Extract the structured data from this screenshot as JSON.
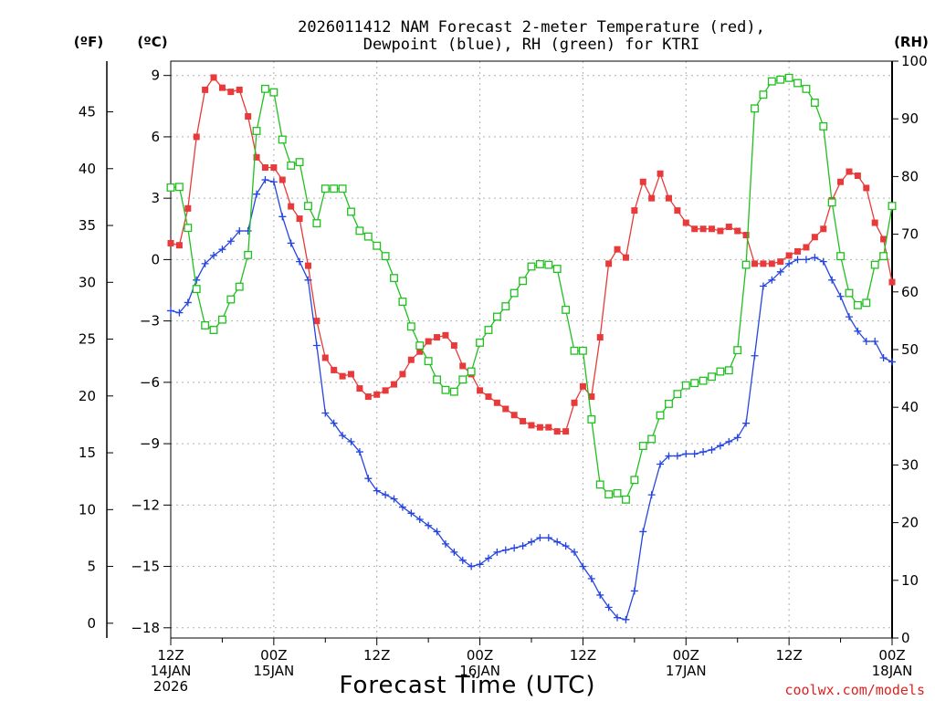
{
  "chart_data": {
    "type": "line",
    "title_line1": "2026011412 NAM Forecast 2-meter Temperature (red),",
    "title_line2": "Dewpoint (blue), RH (green) for KTRI",
    "unit_f": "(ºF)",
    "unit_c": "(ºC)",
    "unit_rh": "(RH)",
    "xlabel": "Forecast Time (UTC)",
    "credit": "coolwx.com/models",
    "x_ticks": [
      {
        "hour": 0,
        "lines": [
          "12Z",
          "14JAN",
          "2026"
        ]
      },
      {
        "hour": 12,
        "lines": [
          "00Z",
          "15JAN"
        ]
      },
      {
        "hour": 24,
        "lines": [
          "12Z"
        ]
      },
      {
        "hour": 36,
        "lines": [
          "00Z",
          "16JAN"
        ]
      },
      {
        "hour": 48,
        "lines": [
          "12Z"
        ]
      },
      {
        "hour": 60,
        "lines": [
          "00Z",
          "17JAN"
        ]
      },
      {
        "hour": 72,
        "lines": [
          "12Z"
        ]
      },
      {
        "hour": 84,
        "lines": [
          "00Z",
          "18JAN"
        ]
      }
    ],
    "x_range_hours": [
      0,
      84
    ],
    "y_left_c_range": [
      -18.5,
      9.7
    ],
    "y_left_c_ticks": [
      9,
      6,
      3,
      0,
      -3,
      -6,
      -9,
      -12,
      -15,
      -18
    ],
    "y_left_f_ticks": [
      45,
      40,
      35,
      30,
      25,
      20,
      15,
      10,
      5,
      0
    ],
    "y_right_rh_range": [
      0,
      100
    ],
    "y_right_rh_ticks": [
      100,
      90,
      80,
      70,
      60,
      50,
      40,
      30,
      20,
      10,
      0
    ],
    "series": [
      {
        "name": "Temperature (C)",
        "axis": "c",
        "color": "#e83a3a",
        "marker": "filled-square",
        "values": [
          [
            0,
            0.8
          ],
          [
            1,
            0.7
          ],
          [
            2,
            2.5
          ],
          [
            3,
            6.0
          ],
          [
            4,
            8.3
          ],
          [
            5,
            8.9
          ],
          [
            6,
            8.4
          ],
          [
            7,
            8.2
          ],
          [
            8,
            8.3
          ],
          [
            9,
            7.0
          ],
          [
            10,
            5.0
          ],
          [
            11,
            4.5
          ],
          [
            12,
            4.5
          ],
          [
            13,
            3.9
          ],
          [
            14,
            2.6
          ],
          [
            15,
            2.0
          ],
          [
            16,
            -0.3
          ],
          [
            17,
            -3.0
          ],
          [
            18,
            -4.8
          ],
          [
            19,
            -5.4
          ],
          [
            20,
            -5.7
          ],
          [
            21,
            -5.6
          ],
          [
            22,
            -6.3
          ],
          [
            23,
            -6.7
          ],
          [
            24,
            -6.6
          ],
          [
            25,
            -6.4
          ],
          [
            26,
            -6.1
          ],
          [
            27,
            -5.6
          ],
          [
            28,
            -4.9
          ],
          [
            29,
            -4.5
          ],
          [
            30,
            -4.0
          ],
          [
            31,
            -3.8
          ],
          [
            32,
            -3.7
          ],
          [
            33,
            -4.2
          ],
          [
            34,
            -5.2
          ],
          [
            35,
            -5.6
          ],
          [
            36,
            -6.4
          ],
          [
            37,
            -6.7
          ],
          [
            38,
            -7.0
          ],
          [
            39,
            -7.3
          ],
          [
            40,
            -7.6
          ],
          [
            41,
            -7.9
          ],
          [
            42,
            -8.1
          ],
          [
            43,
            -8.2
          ],
          [
            44,
            -8.2
          ],
          [
            45,
            -8.4
          ],
          [
            46,
            -8.4
          ],
          [
            47,
            -7.0
          ],
          [
            48,
            -6.2
          ],
          [
            49,
            -6.7
          ],
          [
            50,
            -3.8
          ],
          [
            51,
            -0.2
          ],
          [
            52,
            0.5
          ],
          [
            53,
            0.1
          ],
          [
            54,
            2.4
          ],
          [
            55,
            3.8
          ],
          [
            56,
            3.0
          ],
          [
            57,
            4.2
          ],
          [
            58,
            3.0
          ],
          [
            59,
            2.4
          ],
          [
            60,
            1.8
          ],
          [
            61,
            1.5
          ],
          [
            62,
            1.5
          ],
          [
            63,
            1.5
          ],
          [
            64,
            1.4
          ],
          [
            65,
            1.6
          ],
          [
            66,
            1.4
          ],
          [
            67,
            1.2
          ],
          [
            68,
            -0.2
          ],
          [
            69,
            -0.2
          ],
          [
            70,
            -0.2
          ],
          [
            71,
            -0.1
          ],
          [
            72,
            0.2
          ],
          [
            73,
            0.4
          ],
          [
            74,
            0.6
          ],
          [
            75,
            1.1
          ],
          [
            76,
            1.5
          ],
          [
            77,
            2.9
          ],
          [
            78,
            3.8
          ],
          [
            79,
            4.3
          ],
          [
            80,
            4.1
          ],
          [
            81,
            3.5
          ],
          [
            82,
            1.8
          ],
          [
            83,
            1.0
          ],
          [
            84,
            -1.1
          ]
        ]
      },
      {
        "name": "Dewpoint (C)",
        "axis": "c",
        "color": "#2545e0",
        "marker": "plus",
        "values": [
          [
            0,
            -2.5
          ],
          [
            1,
            -2.6
          ],
          [
            2,
            -2.1
          ],
          [
            3,
            -1.0
          ],
          [
            4,
            -0.2
          ],
          [
            5,
            0.2
          ],
          [
            6,
            0.5
          ],
          [
            7,
            0.9
          ],
          [
            8,
            1.4
          ],
          [
            9,
            1.4
          ],
          [
            10,
            3.2
          ],
          [
            11,
            3.9
          ],
          [
            12,
            3.8
          ],
          [
            13,
            2.1
          ],
          [
            14,
            0.8
          ],
          [
            15,
            -0.1
          ],
          [
            16,
            -1.0
          ],
          [
            17,
            -4.2
          ],
          [
            18,
            -7.5
          ],
          [
            19,
            -8.0
          ],
          [
            20,
            -8.6
          ],
          [
            21,
            -8.9
          ],
          [
            22,
            -9.4
          ],
          [
            23,
            -10.7
          ],
          [
            24,
            -11.3
          ],
          [
            25,
            -11.5
          ],
          [
            26,
            -11.7
          ],
          [
            27,
            -12.1
          ],
          [
            28,
            -12.4
          ],
          [
            29,
            -12.7
          ],
          [
            30,
            -13.0
          ],
          [
            31,
            -13.3
          ],
          [
            32,
            -13.9
          ],
          [
            33,
            -14.3
          ],
          [
            34,
            -14.7
          ],
          [
            35,
            -15.0
          ],
          [
            36,
            -14.9
          ],
          [
            37,
            -14.6
          ],
          [
            38,
            -14.3
          ],
          [
            39,
            -14.2
          ],
          [
            40,
            -14.1
          ],
          [
            41,
            -14.0
          ],
          [
            42,
            -13.8
          ],
          [
            43,
            -13.6
          ],
          [
            44,
            -13.6
          ],
          [
            45,
            -13.8
          ],
          [
            46,
            -14.0
          ],
          [
            47,
            -14.3
          ],
          [
            48,
            -15.0
          ],
          [
            49,
            -15.6
          ],
          [
            50,
            -16.4
          ],
          [
            51,
            -17.0
          ],
          [
            52,
            -17.5
          ],
          [
            53,
            -17.6
          ],
          [
            54,
            -16.2
          ],
          [
            55,
            -13.3
          ],
          [
            56,
            -11.5
          ],
          [
            57,
            -10.0
          ],
          [
            58,
            -9.6
          ],
          [
            59,
            -9.6
          ],
          [
            60,
            -9.5
          ],
          [
            61,
            -9.5
          ],
          [
            62,
            -9.4
          ],
          [
            63,
            -9.3
          ],
          [
            64,
            -9.1
          ],
          [
            65,
            -8.9
          ],
          [
            66,
            -8.7
          ],
          [
            67,
            -8.0
          ],
          [
            68,
            -4.7
          ],
          [
            69,
            -1.3
          ],
          [
            70,
            -1.0
          ],
          [
            71,
            -0.6
          ],
          [
            72,
            -0.2
          ],
          [
            73,
            0.0
          ],
          [
            74,
            0.0
          ],
          [
            75,
            0.1
          ],
          [
            76,
            -0.1
          ],
          [
            77,
            -1.0
          ],
          [
            78,
            -1.8
          ],
          [
            79,
            -2.8
          ],
          [
            80,
            -3.5
          ],
          [
            81,
            -4.0
          ],
          [
            82,
            -4.0
          ],
          [
            83,
            -4.8
          ],
          [
            84,
            -5.0
          ]
        ]
      },
      {
        "name": "RH (%)",
        "axis": "rh",
        "color": "#20c020",
        "marker": "open-square",
        "values": [
          [
            0,
            78.1
          ],
          [
            1,
            78.2
          ],
          [
            2,
            71.1
          ],
          [
            3,
            60.5
          ],
          [
            4,
            54.2
          ],
          [
            5,
            53.4
          ],
          [
            6,
            55.2
          ],
          [
            7,
            58.7
          ],
          [
            8,
            60.9
          ],
          [
            9,
            66.4
          ],
          [
            10,
            87.9
          ],
          [
            11,
            95.2
          ],
          [
            12,
            94.6
          ],
          [
            13,
            86.4
          ],
          [
            14,
            81.9
          ],
          [
            15,
            82.5
          ],
          [
            16,
            74.9
          ],
          [
            17,
            71.9
          ],
          [
            18,
            77.9
          ],
          [
            19,
            77.9
          ],
          [
            20,
            77.9
          ],
          [
            21,
            73.9
          ],
          [
            22,
            70.6
          ],
          [
            23,
            69.6
          ],
          [
            24,
            68.0
          ],
          [
            25,
            66.2
          ],
          [
            26,
            62.4
          ],
          [
            27,
            58.3
          ],
          [
            28,
            54.0
          ],
          [
            29,
            50.7
          ],
          [
            30,
            48.0
          ],
          [
            31,
            44.8
          ],
          [
            32,
            43.0
          ],
          [
            33,
            42.7
          ],
          [
            34,
            44.8
          ],
          [
            35,
            46.2
          ],
          [
            36,
            51.2
          ],
          [
            37,
            53.4
          ],
          [
            38,
            55.7
          ],
          [
            39,
            57.5
          ],
          [
            40,
            59.8
          ],
          [
            41,
            61.9
          ],
          [
            42,
            64.4
          ],
          [
            43,
            64.8
          ],
          [
            44,
            64.7
          ],
          [
            45,
            64.0
          ],
          [
            46,
            56.9
          ],
          [
            47,
            49.8
          ],
          [
            48,
            49.8
          ],
          [
            49,
            37.9
          ],
          [
            50,
            26.6
          ],
          [
            51,
            24.9
          ],
          [
            52,
            25.1
          ],
          [
            53,
            24.0
          ],
          [
            54,
            27.4
          ],
          [
            55,
            33.3
          ],
          [
            56,
            34.5
          ],
          [
            57,
            38.6
          ],
          [
            58,
            40.6
          ],
          [
            59,
            42.3
          ],
          [
            60,
            43.8
          ],
          [
            61,
            44.2
          ],
          [
            62,
            44.6
          ],
          [
            63,
            45.3
          ],
          [
            64,
            46.2
          ],
          [
            65,
            46.4
          ],
          [
            66,
            49.9
          ],
          [
            67,
            64.7
          ],
          [
            68,
            91.8
          ],
          [
            69,
            94.2
          ],
          [
            70,
            96.5
          ],
          [
            71,
            96.8
          ],
          [
            72,
            97.1
          ],
          [
            73,
            96.2
          ],
          [
            74,
            95.2
          ],
          [
            75,
            92.8
          ],
          [
            76,
            88.7
          ],
          [
            77,
            75.5
          ],
          [
            78,
            66.2
          ],
          [
            79,
            59.8
          ],
          [
            80,
            57.7
          ],
          [
            81,
            58.1
          ],
          [
            82,
            64.7
          ],
          [
            83,
            66.2
          ],
          [
            84,
            74.9
          ]
        ]
      }
    ]
  }
}
